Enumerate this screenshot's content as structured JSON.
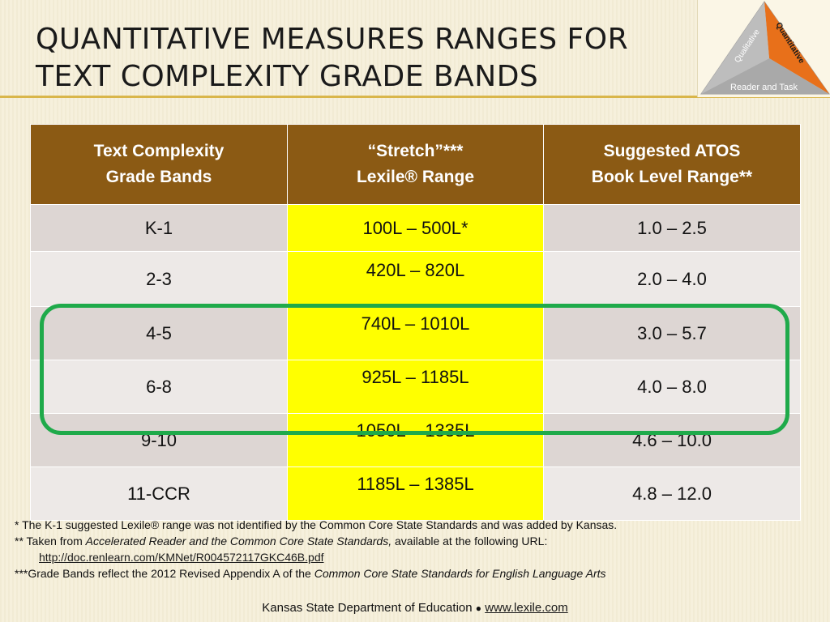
{
  "slide": {
    "title_line1": "QUANTITATIVE MEASURES RANGES FOR",
    "title_line2": "TEXT COMPLEXITY GRADE BANDS"
  },
  "logo": {
    "left_label": "Qualitative",
    "right_label": "Quantitative",
    "bottom_label": "Reader and Task"
  },
  "table": {
    "headers": [
      {
        "line1": "Text Complexity",
        "line2": "Grade Bands"
      },
      {
        "line1": "“Stretch”***",
        "line2": "Lexile® Range"
      },
      {
        "line1": "Suggested ATOS",
        "line2": "Book Level Range**"
      }
    ],
    "rows": [
      {
        "band": "K-1",
        "lexile": "100L – 500L*",
        "atos": "1.0 – 2.5"
      },
      {
        "band": "2-3",
        "lexile": "420L – 820L",
        "atos": "2.0 – 4.0"
      },
      {
        "band": "4-5",
        "lexile": "740L – 1010L",
        "atos": "3.0 – 5.7"
      },
      {
        "band": "6-8",
        "lexile": "925L – 1185L",
        "atos": "4.0 – 8.0"
      },
      {
        "band": "9-10",
        "lexile": "1050L – 1335L",
        "atos": "4.6 – 10.0"
      },
      {
        "band": "11-CCR",
        "lexile": "1185L – 1385L",
        "atos": "4.8 – 12.0"
      }
    ]
  },
  "notes": {
    "note1": "* The K-1 suggested Lexile® range was not identified by the Common Core State Standards and was added by Kansas.",
    "note2_prefix": "** Taken from ",
    "note2_italic": "Accelerated Reader and the Common Core State Standards,",
    "note2_suffix": " available at the following URL:",
    "url": "http://doc.renlearn.com/KMNet/R004572117GKC46B.pdf",
    "note3_prefix": "***Grade Bands reflect the 2012 Revised Appendix A of the ",
    "note3_italic": "Common Core State Standards for English Language Arts"
  },
  "footer": {
    "org": "Kansas State Department of Education",
    "separator": "●",
    "link": "www.lexile.com"
  },
  "colors": {
    "header_bg": "#8b5a14",
    "lexile_highlight": "#ffff00",
    "circle_outline": "#1faa4a",
    "rule": "#d9b64a"
  }
}
